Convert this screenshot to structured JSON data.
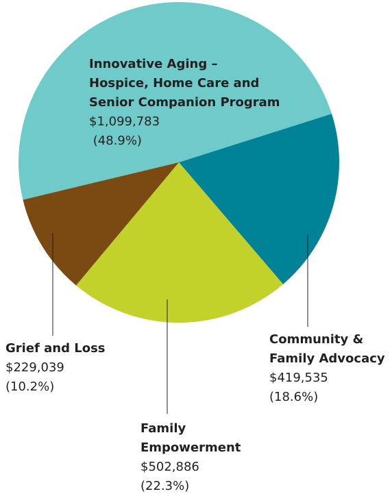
{
  "chart_data": {
    "type": "pie",
    "categories": [
      "Innovative Aging –\nHospice, Home Care and\nSenior Companion Program",
      "Community &\nFamily Advocacy",
      "Family\nEmpowerment",
      "Grief and Loss"
    ],
    "values": [
      1099783,
      419535,
      502886,
      229039
    ],
    "value_labels": [
      "$1,099,783",
      "$419,535",
      "$502,886",
      "$229,039"
    ],
    "percents": [
      48.9,
      18.6,
      22.3,
      10.2
    ],
    "percent_labels": [
      " (48.9%)",
      "(18.6%)",
      "(22.3%)",
      "(10.2%)"
    ],
    "colors": [
      "#6fcbc9",
      "#008396",
      "#c2d22b",
      "#7b4a12"
    ]
  }
}
